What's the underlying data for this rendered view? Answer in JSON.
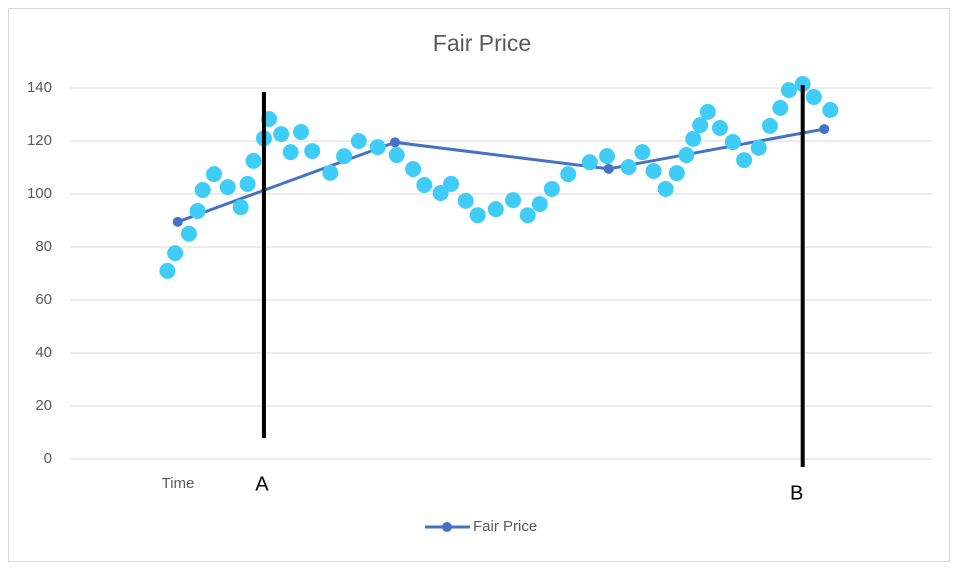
{
  "chart_data": {
    "type": "line",
    "title": "Fair Price",
    "x_label": "Time",
    "xlim": [
      0,
      100
    ],
    "ylim": [
      0,
      140
    ],
    "yticks": [
      0,
      20,
      40,
      60,
      80,
      100,
      120,
      140
    ],
    "grid": true,
    "legend": "bottom",
    "series": [
      {
        "name": "Fair Price",
        "color": "#4472c4",
        "mode": "line+markers",
        "x": [
          12.5,
          37.7,
          62.5,
          87.5
        ],
        "values": [
          89.5,
          119.5,
          109.5,
          124.5
        ]
      },
      {
        "color": "#3fcdf8",
        "mode": "markers",
        "x": [
          11.3,
          12.2,
          13.8,
          14.8,
          15.4,
          16.7,
          18.3,
          19.8,
          20.6,
          21.3,
          22.5,
          23.1,
          24.5,
          25.6,
          26.8,
          28.1,
          30.2,
          31.8,
          33.5,
          35.7,
          37.9,
          39.8,
          41.1,
          43.0,
          44.2,
          45.9,
          47.3,
          49.4,
          51.4,
          53.1,
          54.5,
          55.9,
          57.8,
          60.3,
          62.3,
          64.8,
          66.4,
          67.7,
          69.1,
          70.4,
          71.5,
          72.3,
          73.1,
          74.0,
          75.4,
          76.9,
          78.2,
          79.9,
          81.2,
          82.4,
          83.4,
          85.0,
          86.3,
          88.2
        ],
        "values": [
          71,
          77.7,
          85,
          93.6,
          101.5,
          107.5,
          102.6,
          95,
          103.8,
          112.5,
          121,
          128.3,
          122.6,
          115.8,
          123.4,
          116.2,
          108,
          114.3,
          120,
          117.7,
          114.7,
          109.4,
          103.4,
          100.4,
          103.8,
          97.4,
          92,
          94.3,
          97.7,
          92,
          96.2,
          101.9,
          107.5,
          112,
          114.3,
          110.2,
          115.8,
          108.7,
          101.9,
          107.9,
          114.7,
          120.8,
          126,
          131,
          124.9,
          119.6,
          112.8,
          117.4,
          125.7,
          132.5,
          139.2,
          141.5,
          136.6,
          131.7
        ]
      }
    ],
    "annotations": [
      {
        "label": "A",
        "x": 22.5
      },
      {
        "label": "B",
        "x": 85
      }
    ]
  }
}
